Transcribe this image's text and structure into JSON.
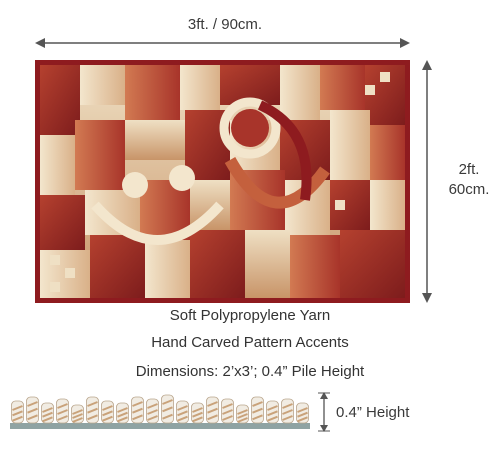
{
  "dimensions": {
    "width_label": "3ft. / 90cm.",
    "height_label_line1": "2ft.",
    "height_label_line2": "60cm.",
    "pile_height_label": "0.4” Height"
  },
  "features": [
    "Soft Polypropylene Yarn",
    "Hand Carved Pattern Accents",
    "Dimensions: 2’x3’; 0.4” Pile Height"
  ],
  "colors": {
    "rug_border": "#8e1b1f",
    "rug_red": "#a8342a",
    "rug_rust": "#c4603d",
    "rug_tan": "#d9b088",
    "rug_cream": "#efe0c4",
    "arrow": "#555555",
    "pile_stripe": "#c9a27a",
    "pile_base": "#8fa3a3"
  }
}
